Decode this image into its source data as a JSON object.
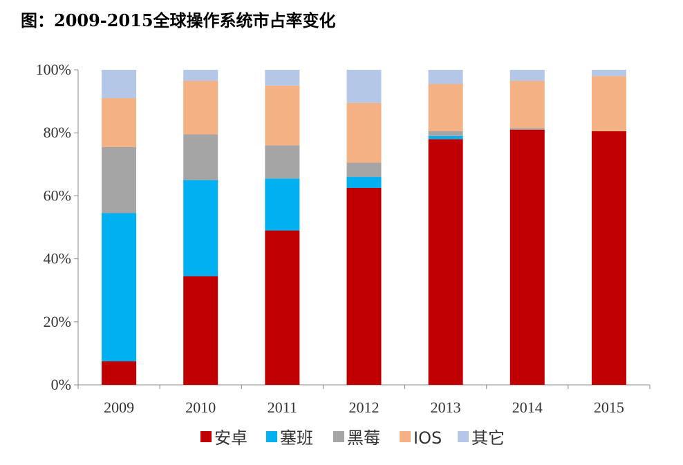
{
  "title": "图：2009-2015全球操作系统市占率变化",
  "chart_data": {
    "type": "bar",
    "stacked": true,
    "title": "图：2009-2015全球操作系统市占率变化",
    "xlabel": "",
    "ylabel": "",
    "ylim": [
      0,
      100
    ],
    "yticks": [
      0,
      20,
      40,
      60,
      80,
      100
    ],
    "ytick_labels": [
      "0%",
      "20%",
      "40%",
      "60%",
      "80%",
      "100%"
    ],
    "categories": [
      "2009",
      "2010",
      "2011",
      "2012",
      "2013",
      "2014",
      "2015"
    ],
    "legend_position": "bottom",
    "series": [
      {
        "name": "安卓",
        "color": "#C00000",
        "values": [
          7.5,
          34.5,
          49,
          62.5,
          78,
          81,
          80.5
        ]
      },
      {
        "name": "塞班",
        "color": "#00B0F0",
        "values": [
          47,
          30.5,
          16.5,
          3.5,
          1,
          0,
          0
        ]
      },
      {
        "name": "黑莓",
        "color": "#A5A5A5",
        "values": [
          21,
          14.5,
          10.5,
          4.5,
          1.5,
          0.5,
          0
        ]
      },
      {
        "name": "IOS",
        "color": "#F4B183",
        "values": [
          15.5,
          17,
          19,
          19,
          15,
          15,
          17.5
        ]
      },
      {
        "name": "其它",
        "color": "#B4C7E7",
        "values": [
          9,
          3.5,
          5,
          10.5,
          4.5,
          3.5,
          2
        ]
      }
    ]
  }
}
